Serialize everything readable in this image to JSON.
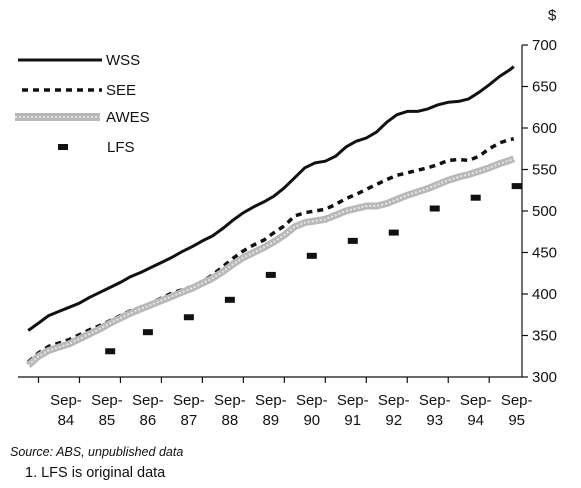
{
  "chart_data": {
    "type": "line",
    "unit": "$",
    "ylim": [
      300,
      700
    ],
    "yticks": [
      300,
      350,
      400,
      450,
      500,
      550,
      600,
      650,
      700
    ],
    "xlim": [
      1983.5,
      1995.8
    ],
    "xticks": [
      {
        "line1": "Sep-",
        "line2": "84",
        "x": 1984.67
      },
      {
        "line1": "Sep-",
        "line2": "85",
        "x": 1985.67
      },
      {
        "line1": "Sep-",
        "line2": "86",
        "x": 1986.67
      },
      {
        "line1": "Sep-",
        "line2": "87",
        "x": 1987.67
      },
      {
        "line1": "Sep-",
        "line2": "88",
        "x": 1988.67
      },
      {
        "line1": "Sep-",
        "line2": "89",
        "x": 1989.67
      },
      {
        "line1": "Sep-",
        "line2": "90",
        "x": 1990.67
      },
      {
        "line1": "Sep-",
        "line2": "91",
        "x": 1991.67
      },
      {
        "line1": "Sep-",
        "line2": "92",
        "x": 1992.67
      },
      {
        "line1": "Sep-",
        "line2": "93",
        "x": 1993.67
      },
      {
        "line1": "Sep-",
        "line2": "94",
        "x": 1994.67
      },
      {
        "line1": "Sep-",
        "line2": "95",
        "x": 1995.67
      }
    ],
    "legend_position": "top-left",
    "grid": false,
    "series": [
      {
        "name": "WSS",
        "style": "solid",
        "color": "#111111",
        "points": [
          [
            1983.75,
            356
          ],
          [
            1984.0,
            365
          ],
          [
            1984.25,
            374
          ],
          [
            1984.5,
            379
          ],
          [
            1984.75,
            384
          ],
          [
            1985.0,
            389
          ],
          [
            1985.25,
            396
          ],
          [
            1985.5,
            402
          ],
          [
            1985.75,
            408
          ],
          [
            1986.0,
            414
          ],
          [
            1986.25,
            421
          ],
          [
            1986.5,
            426
          ],
          [
            1986.75,
            432
          ],
          [
            1987.0,
            438
          ],
          [
            1987.25,
            444
          ],
          [
            1987.5,
            451
          ],
          [
            1987.75,
            457
          ],
          [
            1988.0,
            464
          ],
          [
            1988.25,
            470
          ],
          [
            1988.5,
            479
          ],
          [
            1988.75,
            489
          ],
          [
            1989.0,
            498
          ],
          [
            1989.25,
            505
          ],
          [
            1989.5,
            511
          ],
          [
            1989.75,
            518
          ],
          [
            1990.0,
            528
          ],
          [
            1990.25,
            540
          ],
          [
            1990.5,
            552
          ],
          [
            1990.75,
            558
          ],
          [
            1991.0,
            560
          ],
          [
            1991.25,
            566
          ],
          [
            1991.5,
            577
          ],
          [
            1991.75,
            584
          ],
          [
            1992.0,
            588
          ],
          [
            1992.25,
            595
          ],
          [
            1992.5,
            607
          ],
          [
            1992.75,
            616
          ],
          [
            1993.0,
            620
          ],
          [
            1993.25,
            620
          ],
          [
            1993.5,
            623
          ],
          [
            1993.75,
            628
          ],
          [
            1994.0,
            631
          ],
          [
            1994.25,
            632
          ],
          [
            1994.5,
            635
          ],
          [
            1994.75,
            643
          ],
          [
            1995.0,
            652
          ],
          [
            1995.25,
            662
          ],
          [
            1995.5,
            670
          ],
          [
            1995.6,
            674
          ]
        ]
      },
      {
        "name": "SEE",
        "style": "dashed",
        "color": "#111111",
        "points": [
          [
            1983.75,
            318
          ],
          [
            1984.0,
            329
          ],
          [
            1984.25,
            337
          ],
          [
            1984.5,
            341
          ],
          [
            1984.75,
            345
          ],
          [
            1985.0,
            351
          ],
          [
            1985.25,
            357
          ],
          [
            1985.5,
            362
          ],
          [
            1985.75,
            368
          ],
          [
            1986.0,
            374
          ],
          [
            1986.25,
            380
          ],
          [
            1986.5,
            384
          ],
          [
            1986.75,
            389
          ],
          [
            1987.0,
            395
          ],
          [
            1987.25,
            401
          ],
          [
            1987.5,
            405
          ],
          [
            1987.75,
            409
          ],
          [
            1988.0,
            415
          ],
          [
            1988.25,
            423
          ],
          [
            1988.5,
            433
          ],
          [
            1988.75,
            443
          ],
          [
            1989.0,
            452
          ],
          [
            1989.25,
            459
          ],
          [
            1989.5,
            465
          ],
          [
            1989.75,
            474
          ],
          [
            1990.0,
            482
          ],
          [
            1990.25,
            494
          ],
          [
            1990.5,
            498
          ],
          [
            1990.75,
            500
          ],
          [
            1991.0,
            502
          ],
          [
            1991.25,
            508
          ],
          [
            1991.5,
            515
          ],
          [
            1991.75,
            520
          ],
          [
            1992.0,
            526
          ],
          [
            1992.25,
            532
          ],
          [
            1992.5,
            538
          ],
          [
            1992.75,
            543
          ],
          [
            1993.0,
            546
          ],
          [
            1993.25,
            549
          ],
          [
            1993.5,
            552
          ],
          [
            1993.75,
            556
          ],
          [
            1994.0,
            561
          ],
          [
            1994.25,
            562
          ],
          [
            1994.5,
            561
          ],
          [
            1994.75,
            566
          ],
          [
            1995.0,
            575
          ],
          [
            1995.25,
            582
          ],
          [
            1995.5,
            586
          ],
          [
            1995.6,
            587
          ]
        ]
      },
      {
        "name": "AWES",
        "style": "band",
        "color": "#b8b8b8",
        "points": [
          [
            1983.75,
            314
          ],
          [
            1984.0,
            325
          ],
          [
            1984.25,
            332
          ],
          [
            1984.5,
            336
          ],
          [
            1984.75,
            340
          ],
          [
            1985.0,
            346
          ],
          [
            1985.25,
            352
          ],
          [
            1985.5,
            358
          ],
          [
            1985.75,
            365
          ],
          [
            1986.0,
            371
          ],
          [
            1986.25,
            377
          ],
          [
            1986.5,
            382
          ],
          [
            1986.75,
            387
          ],
          [
            1987.0,
            392
          ],
          [
            1987.25,
            397
          ],
          [
            1987.5,
            402
          ],
          [
            1987.75,
            407
          ],
          [
            1988.0,
            413
          ],
          [
            1988.25,
            419
          ],
          [
            1988.5,
            427
          ],
          [
            1988.75,
            436
          ],
          [
            1989.0,
            444
          ],
          [
            1989.25,
            450
          ],
          [
            1989.5,
            456
          ],
          [
            1989.75,
            463
          ],
          [
            1990.0,
            471
          ],
          [
            1990.25,
            481
          ],
          [
            1990.5,
            486
          ],
          [
            1990.75,
            488
          ],
          [
            1991.0,
            490
          ],
          [
            1991.25,
            495
          ],
          [
            1991.5,
            500
          ],
          [
            1991.75,
            503
          ],
          [
            1992.0,
            506
          ],
          [
            1992.25,
            506
          ],
          [
            1992.5,
            509
          ],
          [
            1992.75,
            514
          ],
          [
            1993.0,
            519
          ],
          [
            1993.25,
            523
          ],
          [
            1993.5,
            527
          ],
          [
            1993.75,
            532
          ],
          [
            1994.0,
            537
          ],
          [
            1994.25,
            541
          ],
          [
            1994.5,
            544
          ],
          [
            1994.75,
            548
          ],
          [
            1995.0,
            552
          ],
          [
            1995.25,
            557
          ],
          [
            1995.5,
            561
          ],
          [
            1995.6,
            563
          ]
        ]
      },
      {
        "name": "LFS",
        "style": "markers",
        "color": "#111111",
        "points": [
          [
            1985.75,
            331
          ],
          [
            1986.67,
            354
          ],
          [
            1987.67,
            372
          ],
          [
            1988.67,
            393
          ],
          [
            1989.67,
            423
          ],
          [
            1990.67,
            446
          ],
          [
            1991.67,
            464
          ],
          [
            1992.67,
            474
          ],
          [
            1993.67,
            503
          ],
          [
            1994.67,
            516
          ],
          [
            1995.67,
            530
          ]
        ]
      }
    ],
    "footnotes": {
      "source": "Source: ABS, unpublished data",
      "note": "1. LFS is original data"
    }
  }
}
